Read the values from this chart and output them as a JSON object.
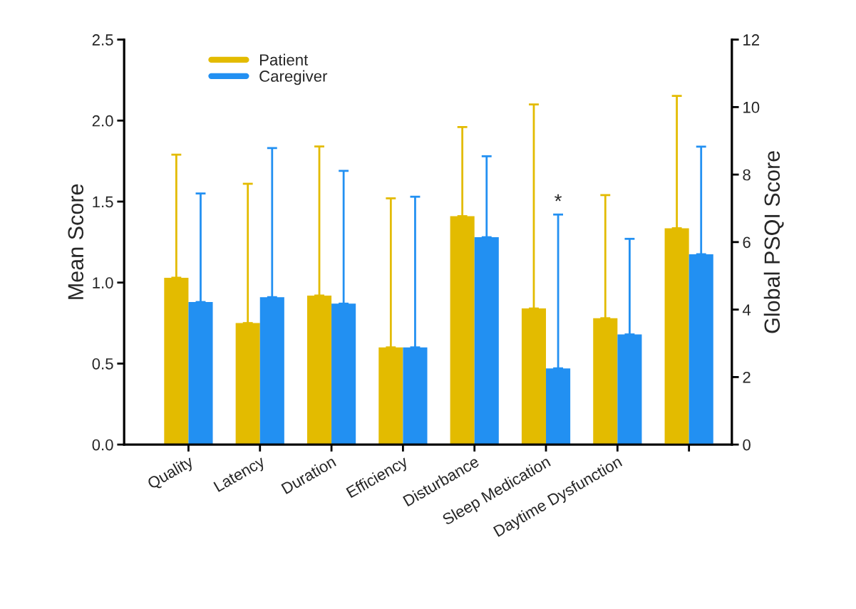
{
  "chart_data": {
    "type": "bar",
    "ylabel": "Mean Score",
    "y2label": "Global PSQI Score",
    "categories": [
      "Quality",
      "Latency",
      "Duration",
      "Efficiency",
      "Disturbance",
      "Sleep Medication",
      "Daytime Dysfunction",
      null
    ],
    "series": [
      {
        "name": "Patient",
        "color": "#e3bb00",
        "values": [
          1.03,
          0.75,
          0.92,
          0.6,
          1.41,
          0.84,
          0.78,
          null
        ],
        "errors": [
          [
            1.03,
            1.79
          ],
          [
            0.75,
            1.61
          ],
          [
            0.92,
            1.84
          ],
          [
            0.6,
            1.52
          ],
          [
            1.41,
            1.96
          ],
          [
            0.84,
            2.1
          ],
          [
            0.78,
            1.54
          ],
          null
        ]
      },
      {
        "name": "Caregiver",
        "color": "#2290f2",
        "values": [
          0.88,
          0.91,
          0.87,
          0.6,
          1.28,
          0.47,
          0.68,
          null
        ],
        "errors": [
          [
            0.88,
            1.55
          ],
          [
            0.91,
            1.83
          ],
          [
            0.87,
            1.69
          ],
          [
            0.6,
            1.53
          ],
          [
            1.28,
            1.78
          ],
          [
            0.47,
            1.42
          ],
          [
            0.68,
            1.27
          ],
          null
        ]
      },
      {
        "color": "#e3bb00",
        "axis": "y2",
        "values": [
          null,
          null,
          null,
          null,
          null,
          null,
          null,
          6.41
        ],
        "errors": [
          null,
          null,
          null,
          null,
          null,
          null,
          null,
          [
            6.41,
            10.33
          ]
        ]
      },
      {
        "color": "#2290f2",
        "axis": "y2",
        "values": [
          null,
          null,
          null,
          null,
          null,
          null,
          null,
          5.64
        ],
        "errors": [
          null,
          null,
          null,
          null,
          null,
          null,
          null,
          [
            5.64,
            8.83
          ]
        ]
      }
    ],
    "ylim": [
      0,
      2.5
    ],
    "yticks": [
      {
        "value": 0,
        "label": "0.0"
      },
      0.5,
      {
        "value": 1,
        "label": "1.0"
      },
      1.5,
      {
        "value": 2,
        "label": "2.0"
      },
      2.5
    ],
    "y2lim": [
      0,
      12
    ],
    "y2ticks": [
      0,
      2,
      4,
      6,
      8,
      10,
      12
    ],
    "annotations": [
      "*"
    ],
    "legend": "top left",
    "grid": false
  }
}
